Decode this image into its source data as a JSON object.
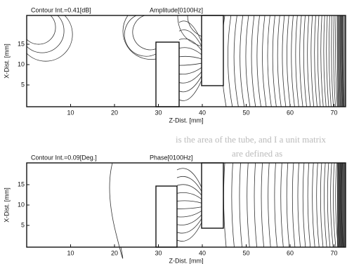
{
  "plots": [
    {
      "contour_label": "Contour Int.=0.41[dB]",
      "title": "Amplitude[0100Hz]",
      "y_label": "X-Dist. [mm]",
      "x_label": "Z-Dist. [mm]",
      "xticks": [
        10,
        20,
        30,
        40,
        50,
        60,
        70
      ],
      "yticks": [
        5,
        10,
        15
      ]
    },
    {
      "contour_label": "Contour Int.=0.09[Deg.]",
      "title": "Phase[0100Hz]",
      "y_label": "X-Dist. [mm]",
      "x_label": "Z-Dist. [mm]",
      "xticks": [
        10,
        20,
        30,
        40,
        50,
        60,
        70
      ],
      "yticks": [
        5,
        10,
        15
      ]
    }
  ],
  "background_text": [
    "is the area of the tube, and I a unit matrix",
    "are defined as"
  ]
}
